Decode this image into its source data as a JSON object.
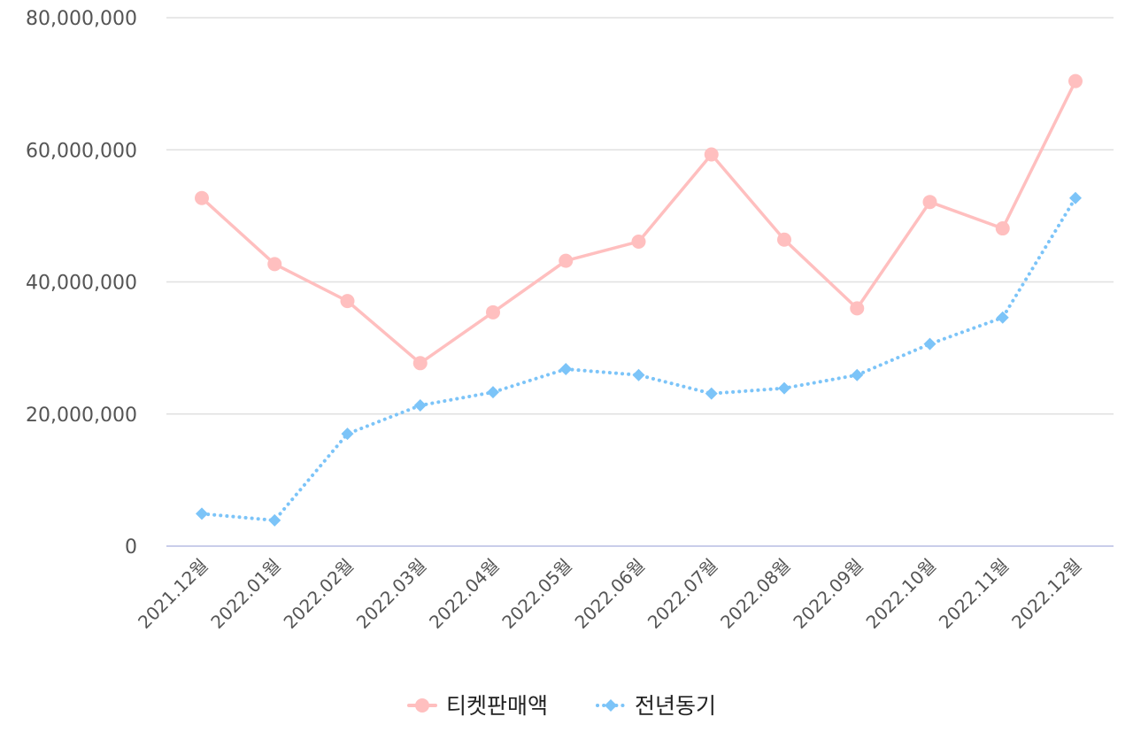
{
  "chart_data": {
    "type": "line",
    "categories": [
      "2021.12월",
      "2022.01월",
      "2022.02월",
      "2022.03월",
      "2022.04월",
      "2022.05월",
      "2022.06월",
      "2022.07월",
      "2022.08월",
      "2022.09월",
      "2022.10월",
      "2022.11월",
      "2022.12월"
    ],
    "series": [
      {
        "name": "티켓판매액",
        "color": "#ffbfbf",
        "marker": "circle",
        "line_style": "solid",
        "values": [
          52700000,
          42700000,
          37100000,
          27700000,
          35400000,
          43200000,
          46100000,
          59300000,
          46400000,
          36000000,
          52100000,
          48100000,
          70400000
        ]
      },
      {
        "name": "전년동기",
        "color": "#7cc4f8",
        "marker": "diamond",
        "line_style": "dotted",
        "values": [
          4900000,
          3900000,
          17000000,
          21300000,
          23300000,
          26800000,
          25900000,
          23100000,
          23900000,
          25900000,
          30600000,
          34600000,
          52700000
        ]
      }
    ],
    "ylim": [
      0,
      80000000
    ],
    "yticks": [
      "0",
      "20,000,000",
      "40,000,000",
      "60,000,000",
      "80,000,000"
    ],
    "ytick_values": [
      0,
      20000000,
      40000000,
      60000000,
      80000000
    ],
    "grid": true,
    "legend_position": "bottom-center"
  }
}
